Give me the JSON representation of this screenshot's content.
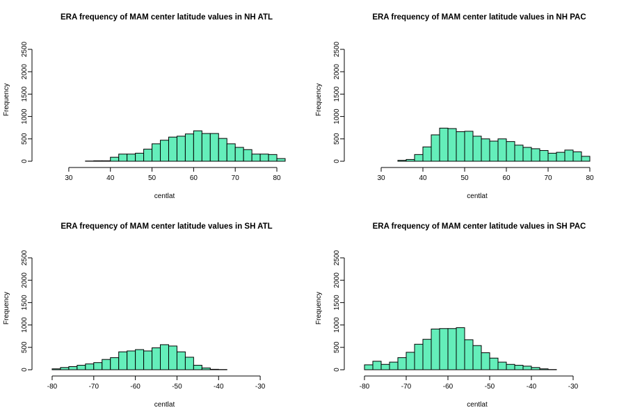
{
  "chart_data": [
    {
      "type": "bar",
      "title": "ERA frequency of MAM center latitude values in NH ATL",
      "xlabel": "centlat",
      "ylabel": "Frequency",
      "xlim": [
        24,
        82
      ],
      "ylim": [
        0,
        2500
      ],
      "xticks": [
        30,
        40,
        50,
        60,
        70,
        80
      ],
      "yticks": [
        0,
        500,
        1000,
        1500,
        2000,
        2500
      ],
      "bar_color": "#64EEBA",
      "bin_start": 24,
      "bin_width": 2,
      "values": [
        0,
        0,
        0,
        0,
        0,
        5,
        10,
        10,
        90,
        160,
        160,
        180,
        270,
        390,
        470,
        540,
        560,
        610,
        680,
        620,
        620,
        510,
        390,
        310,
        260,
        160,
        160,
        150,
        60
      ]
    },
    {
      "type": "bar",
      "title": "ERA frequency of MAM center latitude values in NH PAC",
      "xlabel": "centlat",
      "ylabel": "Frequency",
      "xlim": [
        24,
        82
      ],
      "ylim": [
        0,
        2500
      ],
      "xticks": [
        30,
        40,
        50,
        60,
        70,
        80
      ],
      "yticks": [
        0,
        500,
        1000,
        1500,
        2000,
        2500
      ],
      "bar_color": "#64EEBA",
      "bin_start": 24,
      "bin_width": 2,
      "values": [
        0,
        0,
        0,
        0,
        0,
        20,
        40,
        150,
        320,
        590,
        740,
        730,
        660,
        670,
        560,
        500,
        450,
        500,
        440,
        360,
        310,
        280,
        240,
        180,
        200,
        250,
        210,
        110
      ]
    },
    {
      "type": "bar",
      "title": "ERA frequency of MAM center latitude values in SH ATL",
      "xlabel": "centlat",
      "ylabel": "Frequency",
      "xlim": [
        -82,
        -24
      ],
      "ylim": [
        0,
        2500
      ],
      "xticks": [
        -80,
        -70,
        -60,
        -50,
        -40,
        -30
      ],
      "yticks": [
        0,
        500,
        1000,
        1500,
        2000,
        2500
      ],
      "bar_color": "#64EEBA",
      "bin_start": -80,
      "bin_width": 2,
      "values": [
        20,
        50,
        70,
        100,
        130,
        160,
        230,
        270,
        400,
        420,
        450,
        420,
        490,
        560,
        530,
        400,
        280,
        100,
        40,
        10,
        5,
        0,
        0,
        0,
        0,
        0,
        0,
        0
      ]
    },
    {
      "type": "bar",
      "title": "ERA frequency of MAM center latitude values in SH PAC",
      "xlabel": "centlat",
      "ylabel": "Frequency",
      "xlim": [
        -82,
        -24
      ],
      "ylim": [
        0,
        2500
      ],
      "xticks": [
        -80,
        -70,
        -60,
        -50,
        -40,
        -30
      ],
      "yticks": [
        0,
        500,
        1000,
        1500,
        2000,
        2500
      ],
      "bar_color": "#64EEBA",
      "bin_start": -80,
      "bin_width": 2,
      "values": [
        110,
        190,
        120,
        170,
        270,
        390,
        570,
        680,
        910,
        920,
        920,
        940,
        670,
        540,
        380,
        260,
        170,
        120,
        100,
        80,
        50,
        20,
        5,
        0,
        0,
        0,
        0,
        0
      ]
    }
  ]
}
